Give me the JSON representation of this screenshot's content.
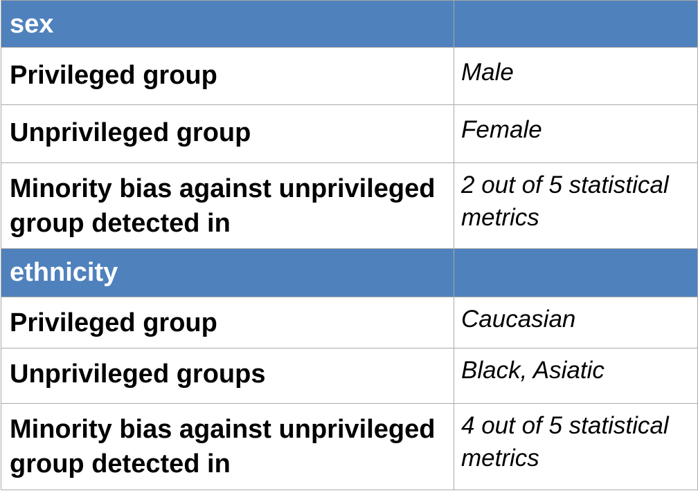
{
  "sections": [
    {
      "title": "sex",
      "rows": [
        {
          "label": "Privileged group",
          "value": "Male"
        },
        {
          "label": "Unprivileged group",
          "value": "Female"
        },
        {
          "label": "Minority bias against unprivileged group detected in",
          "value": "2 out of 5 statistical metrics"
        }
      ]
    },
    {
      "title": "ethnicity",
      "rows": [
        {
          "label": "Privileged group",
          "value": "Caucasian"
        },
        {
          "label": "Unprivileged groups",
          "value": "Black, Asiatic"
        },
        {
          "label": "Minority bias against unprivileged group detected in",
          "value": "4 out of 5 statistical metrics"
        }
      ]
    }
  ],
  "colors": {
    "header_bg": "#4f81bd",
    "header_text": "#ffffff",
    "border": "#a9a9a9"
  }
}
